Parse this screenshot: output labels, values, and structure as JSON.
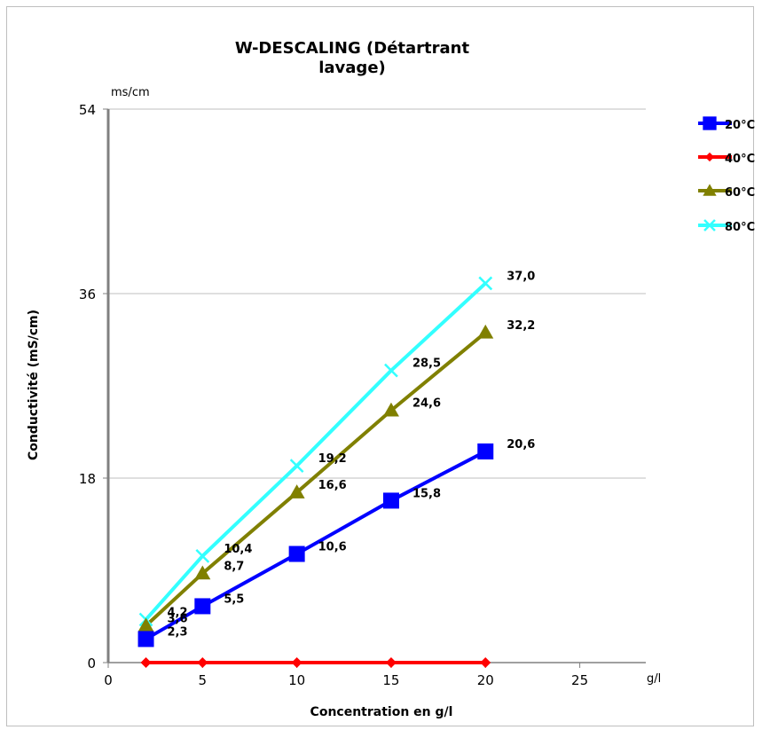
{
  "chart_data": {
    "type": "line",
    "title_line1": "W-DESCALING (Détartrant",
    "title_line2": "lavage)",
    "xlabel": "Concentration en g/l",
    "ylabel": "Conductivité (mS/cm)",
    "x_unit": "g/l",
    "y_unit": "ms/cm",
    "xlim": [
      0,
      28.5
    ],
    "ylim": [
      0,
      54
    ],
    "x_ticks": [
      "0",
      "5",
      "10",
      "15",
      "20",
      "25"
    ],
    "y_ticks": [
      "0",
      "18",
      "36",
      "54"
    ],
    "grid": true,
    "legend_position": "right",
    "x": [
      2,
      5,
      10,
      15,
      20
    ],
    "series": [
      {
        "name": "20°C",
        "color": "#0000ff",
        "marker": "square",
        "values": [
          2.3,
          5.5,
          10.6,
          15.8,
          20.6
        ],
        "labels": [
          "2,3",
          "5,5",
          "10,6",
          "15,8",
          "20,6"
        ]
      },
      {
        "name": "40°C",
        "color": "#ff0000",
        "marker": "diamond",
        "values": [
          0,
          0,
          0,
          0,
          0
        ],
        "labels": []
      },
      {
        "name": "60°C",
        "color": "#808000",
        "marker": "triangle",
        "values": [
          3.6,
          8.7,
          16.6,
          24.6,
          32.2
        ],
        "labels": [
          "3,6",
          "8,7",
          "16,6",
          "24,6",
          "32,2"
        ]
      },
      {
        "name": "80°C",
        "color": "#33ffff",
        "marker": "x",
        "values": [
          4.2,
          10.4,
          19.2,
          28.5,
          37.0
        ],
        "labels": [
          "4,2",
          "10,4",
          "19,2",
          "28,5",
          "37,0"
        ]
      }
    ]
  }
}
